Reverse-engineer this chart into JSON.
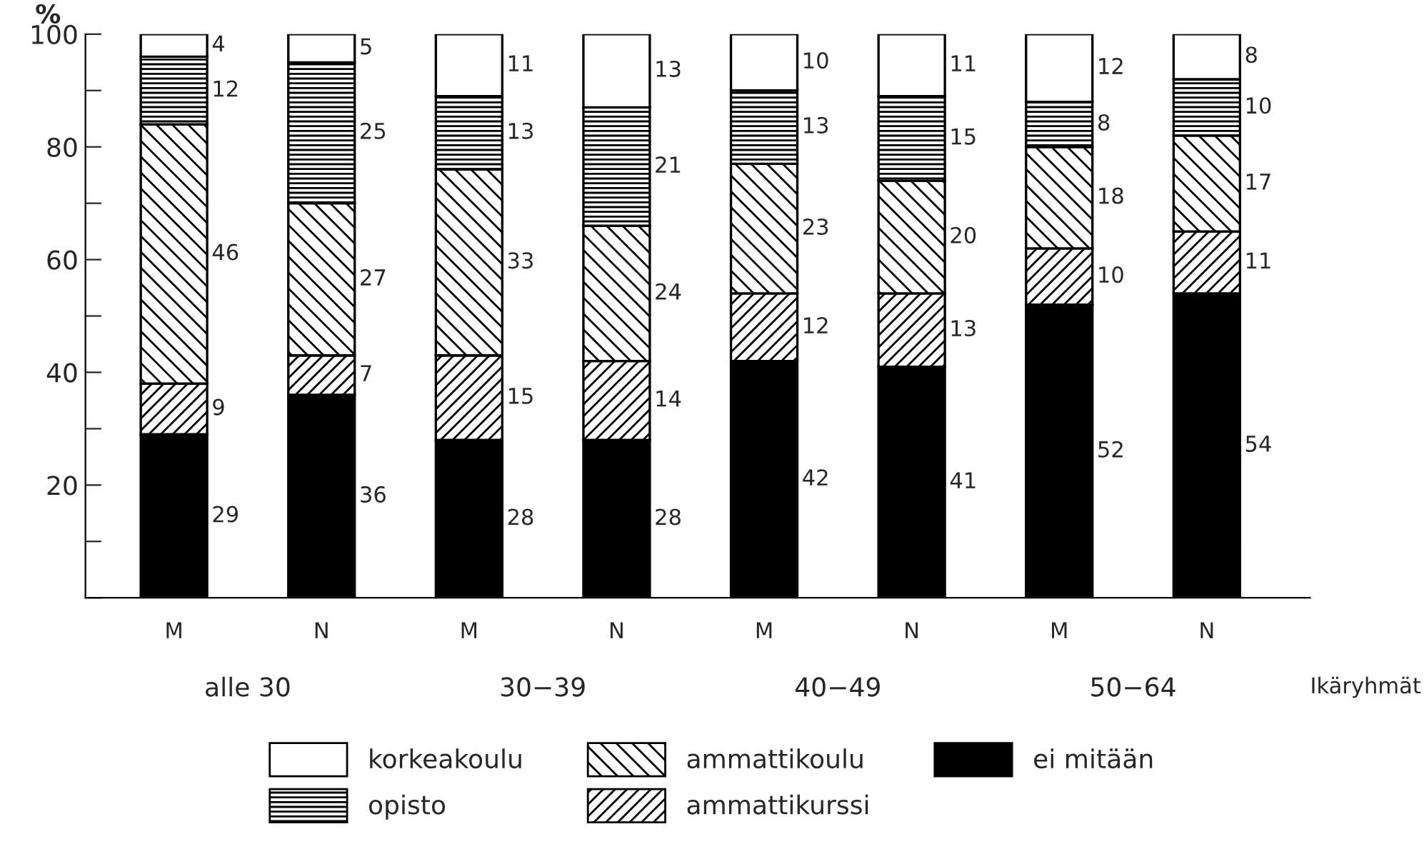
{
  "chart_data": {
    "type": "bar",
    "stacked": true,
    "ylabel": "%",
    "xlabel": "Ikäryhmät",
    "categories": [
      "M",
      "N",
      "M",
      "N",
      "M",
      "N",
      "M",
      "N"
    ],
    "series": [
      {
        "name": "ei mitään",
        "color": "#000000",
        "values": [
          29,
          36,
          28,
          28,
          42,
          41,
          52,
          54
        ]
      },
      {
        "name": "ammattikurssi",
        "color": "#000000",
        "values": [
          9,
          7,
          15,
          14,
          12,
          13,
          10,
          11
        ]
      },
      {
        "name": "ammattikoulu",
        "color": "#000000",
        "values": [
          46,
          27,
          33,
          24,
          23,
          20,
          18,
          17
        ]
      },
      {
        "name": "opisto",
        "color": "#000000",
        "values": [
          12,
          25,
          13,
          21,
          13,
          15,
          8,
          10
        ]
      },
      {
        "name": "korkeakoulu",
        "color": "#ffffff",
        "values": [
          4,
          5,
          11,
          13,
          10,
          11,
          12,
          8
        ]
      }
    ],
    "ylim": [
      0,
      100
    ],
    "yticks": [
      {
        "value": 0,
        "label": null
      },
      {
        "value": 10,
        "label": null
      },
      20,
      {
        "value": 30,
        "label": null
      },
      40,
      {
        "value": 50,
        "label": null
      },
      60,
      {
        "value": 70,
        "label": null
      },
      80,
      {
        "value": 90,
        "label": null
      },
      100
    ],
    "data_labels": true,
    "legend": "bottom",
    "grid": false,
    "annotations": [
      "alle 30",
      "30−39",
      "40−49",
      "50−64"
    ]
  }
}
